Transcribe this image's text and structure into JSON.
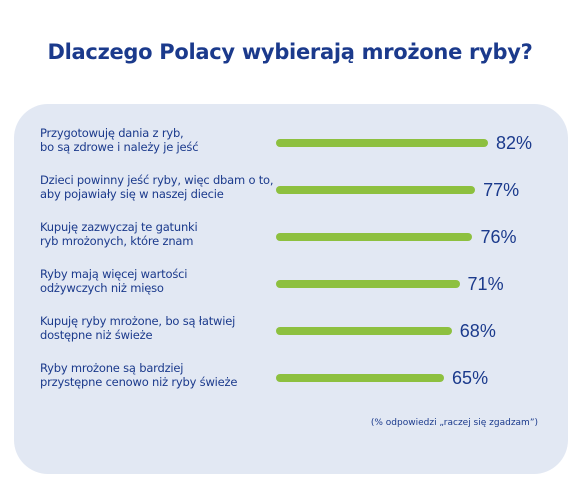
{
  "title": "Dlaczego Polacy wybierają mrożone ryby?",
  "footnote": "(% odpowiedzi „raczej się zgadzam”)",
  "colors": {
    "title": "#1b3a8c",
    "bar": "#8dc03f",
    "panel": "#e2e8f3"
  },
  "chart_data": {
    "type": "bar",
    "orientation": "horizontal",
    "title": "Dlaczego Polacy wybierają mrożone ryby?",
    "categories": [
      [
        "Przygotowuję dania z ryb,",
        "bo są zdrowe i należy je jeść"
      ],
      [
        "Dzieci powinny jeść ryby, więc dbam o to,",
        "aby pojawiały się w naszej diecie"
      ],
      [
        "Kupuję zazwyczaj te gatunki",
        "ryb mrożonych, które znam"
      ],
      [
        "Ryby mają więcej wartości",
        "odżywczych niż mięso"
      ],
      [
        "Kupuję ryby mrożone, bo są łatwiej",
        "dostępne niż świeże"
      ],
      [
        "Ryby mrożone są bardziej",
        "przystępne cenowo niż ryby świeże"
      ]
    ],
    "values": [
      82,
      77,
      76,
      71,
      68,
      65
    ],
    "value_labels": [
      "82%",
      "77%",
      "76%",
      "71%",
      "68%",
      "65%"
    ],
    "unit": "%",
    "xlim": [
      0,
      100
    ],
    "grid": false,
    "legend": "none"
  }
}
